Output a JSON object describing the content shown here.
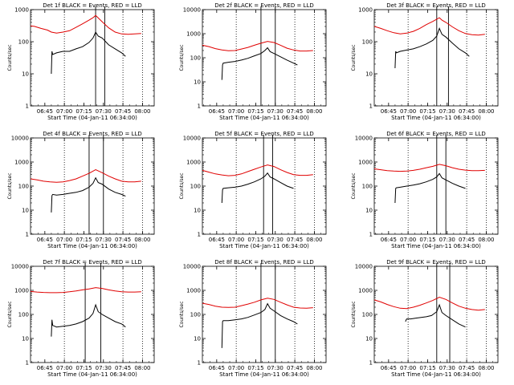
{
  "figure": {
    "common": {
      "ylabel": "Counts/sec",
      "xlabel": "Start Time (04-Jan-11 06:34:00)",
      "x_ticks": [
        "06:45",
        "07:00",
        "07:15",
        "07:30",
        "07:45",
        "08:00"
      ],
      "x_tick_minutes": [
        11,
        26,
        41,
        56,
        71,
        86
      ],
      "xlim_minutes": [
        0,
        95
      ],
      "y_ticks": [
        "1",
        "10",
        "100",
        "1000",
        "10000"
      ],
      "ylim": [
        1,
        10000
      ],
      "y_scale": "log",
      "series_colors": {
        "events": "#000000",
        "lld": "#e00000"
      }
    }
  },
  "chart_data": [
    {
      "type": "line",
      "title": "Det 1f BLACK = Events, RED = LLD",
      "ylabel": "Counts/sec",
      "xlabel": "Start Time (04-Jan-11 06:34:00)",
      "x_ticks": [
        "06:45",
        "07:00",
        "07:15",
        "07:30",
        "07:45",
        "08:00"
      ],
      "ylim": [
        1,
        1000
      ],
      "y_ticks": [
        "1",
        "10",
        "100",
        "1000"
      ],
      "y_scale": "log",
      "dotted_lines_minutes": [
        26,
        71,
        86
      ],
      "solid_lines_minutes": [
        50,
        57
      ],
      "series": [
        {
          "color": "#000000",
          "x": [
            16,
            16.5,
            17,
            20,
            25,
            30,
            35,
            40,
            45,
            48,
            50,
            52,
            55,
            60,
            65,
            70,
            73
          ],
          "y": [
            10,
            50,
            40,
            45,
            50,
            50,
            60,
            70,
            95,
            130,
            200,
            150,
            130,
            80,
            60,
            45,
            35
          ]
        },
        {
          "color": "#e00000",
          "x": [
            0,
            3,
            8,
            13,
            16,
            20,
            25,
            30,
            35,
            40,
            45,
            48,
            50,
            52,
            55,
            60,
            65,
            70,
            75,
            80,
            85
          ],
          "y": [
            310,
            300,
            260,
            230,
            200,
            185,
            200,
            220,
            280,
            360,
            470,
            560,
            660,
            550,
            420,
            270,
            200,
            175,
            170,
            175,
            180
          ]
        }
      ]
    },
    {
      "type": "line",
      "title": "Det 2f BLACK = Events, RED = LLD",
      "ylabel": "Counts/sec",
      "xlabel": "Start Time (04-Jan-11 06:34:00)",
      "x_ticks": [
        "06:45",
        "07:00",
        "07:15",
        "07:30",
        "07:45",
        "08:00"
      ],
      "ylim": [
        1,
        10000
      ],
      "y_ticks": [
        "1",
        "10",
        "100",
        "1000",
        "10000"
      ],
      "y_scale": "log",
      "dotted_lines_minutes": [
        26,
        71,
        86
      ],
      "solid_lines_minutes": [
        45,
        56
      ],
      "series": [
        {
          "color": "#000000",
          "x": [
            15,
            15.5,
            16,
            20,
            25,
            30,
            35,
            40,
            45,
            48,
            50,
            52,
            55,
            60,
            65,
            70,
            73
          ],
          "y": [
            12,
            50,
            60,
            65,
            70,
            80,
            95,
            120,
            150,
            200,
            260,
            180,
            150,
            110,
            80,
            60,
            50
          ]
        },
        {
          "color": "#e00000",
          "x": [
            0,
            5,
            10,
            15,
            20,
            25,
            30,
            35,
            40,
            45,
            50,
            55,
            60,
            65,
            70,
            75,
            80,
            85
          ],
          "y": [
            330,
            290,
            240,
            210,
            195,
            200,
            230,
            270,
            330,
            400,
            480,
            430,
            330,
            250,
            210,
            190,
            190,
            200
          ]
        }
      ]
    },
    {
      "type": "line",
      "title": "Det 3f BLACK = Events, RED = LLD",
      "ylabel": "Counts/sec",
      "xlabel": "Start Time (04-Jan-11 06:34:00)",
      "x_ticks": [
        "06:45",
        "07:00",
        "07:15",
        "07:30",
        "07:45",
        "08:00"
      ],
      "ylim": [
        1,
        1000
      ],
      "y_ticks": [
        "1",
        "10",
        "100",
        "1000"
      ],
      "y_scale": "log",
      "dotted_lines_minutes": [
        26,
        71,
        86
      ],
      "solid_lines_minutes": [
        48,
        57
      ],
      "series": [
        {
          "color": "#000000",
          "x": [
            16,
            16.5,
            17,
            20,
            25,
            30,
            35,
            40,
            45,
            48,
            50,
            52,
            55,
            60,
            65,
            70,
            73
          ],
          "y": [
            15,
            50,
            45,
            50,
            55,
            60,
            70,
            85,
            110,
            150,
            260,
            170,
            140,
            90,
            60,
            45,
            35
          ]
        },
        {
          "color": "#e00000",
          "x": [
            0,
            5,
            10,
            15,
            20,
            25,
            30,
            35,
            40,
            45,
            50,
            52,
            55,
            60,
            65,
            70,
            75,
            80,
            85
          ],
          "y": [
            300,
            260,
            220,
            190,
            175,
            185,
            210,
            260,
            340,
            430,
            560,
            470,
            400,
            290,
            220,
            180,
            165,
            160,
            170
          ]
        }
      ]
    },
    {
      "type": "line",
      "title": "Det 4f BLACK = Events, RED = LLD",
      "ylabel": "Counts/sec",
      "xlabel": "Start Time (04-Jan-11 06:34:00)",
      "x_ticks": [
        "06:45",
        "07:00",
        "07:15",
        "07:30",
        "07:45",
        "08:00"
      ],
      "ylim": [
        1,
        10000
      ],
      "y_ticks": [
        "1",
        "10",
        "100",
        "1000",
        "10000"
      ],
      "y_scale": "log",
      "dotted_lines_minutes": [
        26,
        71,
        86
      ],
      "solid_lines_minutes": [
        45,
        56
      ],
      "series": [
        {
          "color": "#000000",
          "x": [
            16,
            16.5,
            17,
            20,
            25,
            30,
            35,
            40,
            45,
            48,
            50,
            52,
            55,
            60,
            65,
            70,
            73
          ],
          "y": [
            8,
            40,
            45,
            42,
            45,
            50,
            55,
            65,
            90,
            130,
            220,
            140,
            120,
            75,
            55,
            45,
            38
          ]
        },
        {
          "color": "#e00000",
          "x": [
            0,
            5,
            10,
            15,
            20,
            25,
            30,
            35,
            40,
            45,
            50,
            55,
            60,
            65,
            70,
            75,
            80,
            85
          ],
          "y": [
            200,
            180,
            160,
            150,
            145,
            150,
            170,
            200,
            260,
            340,
            480,
            360,
            260,
            200,
            160,
            150,
            150,
            160
          ]
        }
      ]
    },
    {
      "type": "line",
      "title": "Det 5f BLACK = Events, RED = LLD",
      "ylabel": "Counts/sec",
      "xlabel": "Start Time (04-Jan-11 06:34:00)",
      "x_ticks": [
        "06:45",
        "07:00",
        "07:15",
        "07:30",
        "07:45",
        "08:00"
      ],
      "ylim": [
        1,
        10000
      ],
      "y_ticks": [
        "1",
        "10",
        "100",
        "1000",
        "10000"
      ],
      "y_scale": "log",
      "dotted_lines_minutes": [
        26,
        71,
        86
      ],
      "solid_lines_minutes": [
        47,
        54
      ],
      "series": [
        {
          "color": "#000000",
          "x": [
            15,
            15.5,
            16,
            20,
            25,
            30,
            35,
            40,
            45,
            48,
            50,
            52,
            55,
            60,
            65,
            70
          ],
          "y": [
            20,
            70,
            80,
            85,
            90,
            100,
            120,
            150,
            200,
            260,
            350,
            240,
            200,
            140,
            100,
            80
          ]
        },
        {
          "color": "#e00000",
          "x": [
            0,
            5,
            10,
            15,
            20,
            25,
            30,
            35,
            40,
            45,
            50,
            55,
            60,
            65,
            70,
            75,
            80,
            85
          ],
          "y": [
            450,
            380,
            320,
            290,
            270,
            280,
            320,
            400,
            500,
            620,
            750,
            650,
            480,
            370,
            300,
            280,
            280,
            300
          ]
        }
      ]
    },
    {
      "type": "line",
      "title": "Det 6f BLACK = Events, RED = LLD",
      "ylabel": "Counts/sec",
      "xlabel": "Start Time (04-Jan-11 06:34:00)",
      "x_ticks": [
        "06:45",
        "07:00",
        "07:15",
        "07:30",
        "07:45",
        "08:00"
      ],
      "ylim": [
        1,
        10000
      ],
      "y_ticks": [
        "1",
        "10",
        "100",
        "1000",
        "10000"
      ],
      "y_scale": "log",
      "dotted_lines_minutes": [
        26,
        71,
        86
      ],
      "solid_lines_minutes": [
        48,
        55
      ],
      "series": [
        {
          "color": "#000000",
          "x": [
            16,
            16.5,
            17,
            20,
            25,
            30,
            35,
            40,
            45,
            48,
            50,
            52,
            55,
            60,
            65,
            70
          ],
          "y": [
            20,
            80,
            85,
            90,
            100,
            110,
            125,
            150,
            190,
            240,
            330,
            220,
            180,
            130,
            100,
            80
          ]
        },
        {
          "color": "#e00000",
          "x": [
            0,
            5,
            10,
            15,
            20,
            25,
            30,
            35,
            40,
            45,
            50,
            55,
            60,
            65,
            70,
            75,
            80,
            85
          ],
          "y": [
            520,
            480,
            440,
            420,
            410,
            420,
            450,
            500,
            580,
            660,
            800,
            700,
            580,
            500,
            460,
            440,
            440,
            450
          ]
        }
      ]
    },
    {
      "type": "line",
      "title": "Det 7f BLACK = Events, RED = LLD",
      "ylabel": "Counts/sec",
      "xlabel": "Start Time (04-Jan-11 06:34:00)",
      "x_ticks": [
        "06:45",
        "07:00",
        "07:15",
        "07:30",
        "07:45",
        "08:00"
      ],
      "ylim": [
        1,
        10000
      ],
      "y_ticks": [
        "1",
        "10",
        "100",
        "1000",
        "10000"
      ],
      "y_scale": "log",
      "dotted_lines_minutes": [
        26,
        71,
        86
      ],
      "solid_lines_minutes": [
        42,
        54
      ],
      "series": [
        {
          "color": "#000000",
          "x": [
            16,
            16.5,
            17,
            20,
            25,
            30,
            35,
            40,
            45,
            48,
            50,
            52,
            55,
            60,
            65,
            70,
            73
          ],
          "y": [
            12,
            60,
            35,
            30,
            32,
            35,
            40,
            50,
            70,
            110,
            250,
            130,
            100,
            70,
            50,
            40,
            30
          ]
        },
        {
          "color": "#e00000",
          "x": [
            0,
            5,
            10,
            15,
            20,
            25,
            30,
            35,
            40,
            45,
            50,
            55,
            60,
            65,
            70,
            75,
            80,
            85
          ],
          "y": [
            900,
            850,
            820,
            800,
            800,
            820,
            870,
            950,
            1050,
            1150,
            1300,
            1200,
            1050,
            950,
            880,
            850,
            850,
            870
          ]
        }
      ]
    },
    {
      "type": "line",
      "title": "Det 8f BLACK = Events, RED = LLD",
      "ylabel": "Counts/sec",
      "xlabel": "Start Time (04-Jan-11 06:34:00)",
      "x_ticks": [
        "06:45",
        "07:00",
        "07:15",
        "07:30",
        "07:45",
        "08:00"
      ],
      "ylim": [
        1,
        10000
      ],
      "y_ticks": [
        "1",
        "10",
        "100",
        "1000",
        "10000"
      ],
      "y_scale": "log",
      "dotted_lines_minutes": [
        26,
        71,
        86
      ],
      "solid_lines_minutes": [
        45,
        56
      ],
      "series": [
        {
          "color": "#000000",
          "x": [
            15,
            15.5,
            16,
            20,
            25,
            30,
            35,
            40,
            45,
            48,
            50,
            52,
            55,
            60,
            65,
            70,
            73
          ],
          "y": [
            4,
            50,
            55,
            55,
            60,
            65,
            75,
            95,
            120,
            160,
            280,
            180,
            140,
            90,
            65,
            50,
            40
          ]
        },
        {
          "color": "#e00000",
          "x": [
            0,
            5,
            10,
            15,
            20,
            25,
            30,
            35,
            40,
            45,
            50,
            55,
            60,
            65,
            70,
            75,
            80,
            85
          ],
          "y": [
            290,
            260,
            220,
            200,
            195,
            200,
            230,
            270,
            320,
            400,
            470,
            420,
            320,
            250,
            200,
            185,
            180,
            190
          ]
        }
      ]
    },
    {
      "type": "line",
      "title": "Det 9f BLACK = Events, RED = LLD",
      "ylabel": "Counts/sec",
      "xlabel": "Start Time (04-Jan-11 06:34:00)",
      "x_ticks": [
        "06:45",
        "07:00",
        "07:15",
        "07:30",
        "07:45",
        "08:00"
      ],
      "ylim": [
        1,
        10000
      ],
      "y_ticks": [
        "1",
        "10",
        "100",
        "1000",
        "10000"
      ],
      "y_scale": "log",
      "dotted_lines_minutes": [
        26,
        71,
        86
      ],
      "solid_lines_minutes": [
        48,
        58
      ],
      "series": [
        {
          "color": "#000000",
          "x": [
            24,
            24.5,
            25,
            28,
            32,
            36,
            40,
            44,
            48,
            50,
            52,
            55,
            60,
            65,
            70
          ],
          "y": [
            50,
            60,
            65,
            65,
            70,
            75,
            80,
            90,
            130,
            250,
            120,
            90,
            60,
            40,
            30
          ]
        },
        {
          "color": "#e00000",
          "x": [
            0,
            5,
            10,
            15,
            20,
            25,
            30,
            35,
            40,
            45,
            50,
            55,
            60,
            65,
            70,
            75,
            80,
            85
          ],
          "y": [
            400,
            330,
            260,
            210,
            180,
            175,
            200,
            240,
            300,
            380,
            520,
            420,
            300,
            220,
            180,
            160,
            150,
            160
          ]
        }
      ]
    }
  ]
}
